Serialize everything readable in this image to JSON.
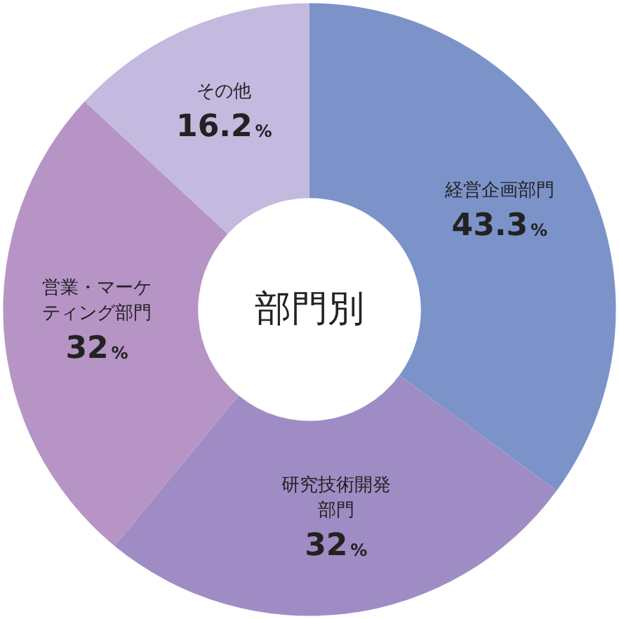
{
  "chart_data": {
    "type": "donut",
    "title": "部門別",
    "categories": [
      "経営企画部門",
      "研究技術開発部門",
      "営業・マーケティング部門",
      "その他"
    ],
    "values": [
      43.3,
      32,
      32,
      16.2
    ],
    "value_labels": [
      "43.3%",
      "32%",
      "32%",
      "16.2%"
    ],
    "colors": [
      "#7b93c9",
      "#a08cc4",
      "#b794c6",
      "#c4b9de"
    ],
    "legend": false
  }
}
